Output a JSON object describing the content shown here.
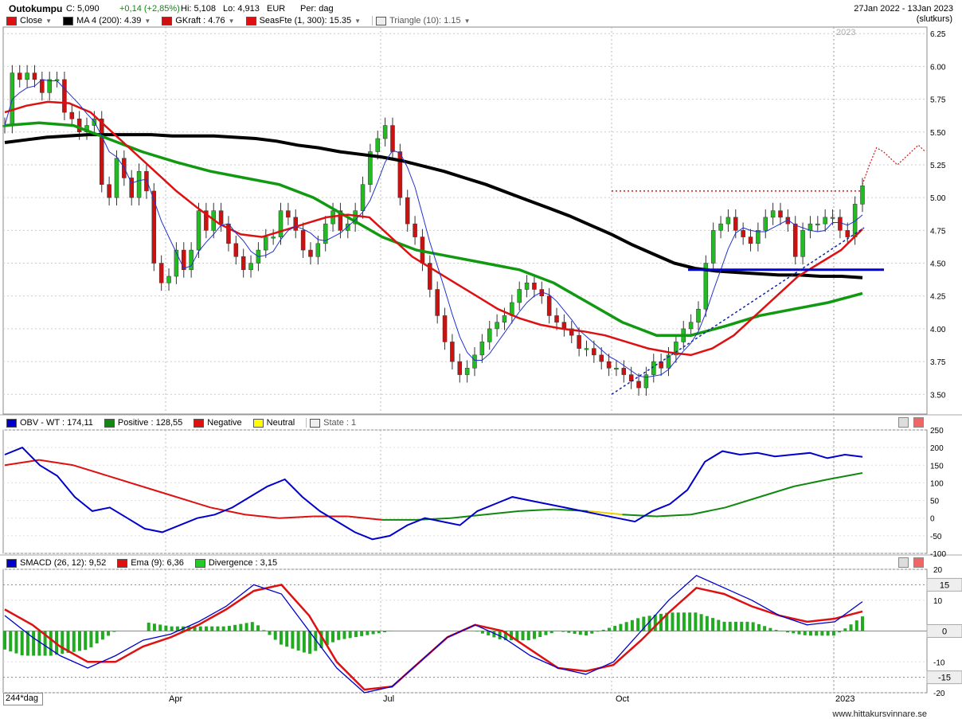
{
  "header": {
    "name": "Outokumpu",
    "close": "C: 5,090",
    "change": "+0,14 (+2,85%)",
    "hi": "Hi: 5,108",
    "lo": "Lo: 4,913",
    "currency": "EUR",
    "period": "Per: dag",
    "range": "27Jan 2022 - 13Jan 2023",
    "mode": "(slutkurs)",
    "year_marker": "2023"
  },
  "legend_price": [
    {
      "label": "Close",
      "color": "#e01010"
    },
    {
      "label": "MA 4 (200): 4.39",
      "color": "#000000"
    },
    {
      "label": "GKraft : 4.76",
      "color": "#d01010"
    },
    {
      "label": "SeasFte (1, 300): 15.35",
      "color": "#e01010"
    },
    {
      "label": "Triangle (10): 1.15",
      "color": "#e8e8e8"
    }
  ],
  "legend_obv": [
    {
      "label": "OBV - WT : 174,11",
      "color": "#0000cc"
    },
    {
      "label": "Positive : 128,55",
      "color": "#118811"
    },
    {
      "label": "Negative",
      "color": "#e01010"
    },
    {
      "label": "Neutral",
      "color": "#ffff00"
    },
    {
      "label": "State : 1",
      "color": "#e8e8e8"
    }
  ],
  "legend_macd": [
    {
      "label": "SMACD (26, 12): 9,52",
      "color": "#0000cc"
    },
    {
      "label": "Ema (9): 6,36",
      "color": "#e01010"
    },
    {
      "label": "Divergence : 3,15",
      "color": "#22cc22"
    }
  ],
  "footer": {
    "period_label": "244*dag",
    "months": [
      "Apr",
      "Jul",
      "Oct",
      "2023"
    ],
    "watermark": "www.hittakursvinnare.se"
  },
  "chart_data": [
    {
      "type": "line",
      "panel": "price",
      "ylim": [
        3.35,
        6.3
      ],
      "yticks": [
        "6.25",
        "6.00",
        "5.75",
        "5.50",
        "5.25",
        "5.00",
        "4.75",
        "4.50",
        "4.25",
        "4.00",
        "3.75",
        "3.50"
      ],
      "close": [
        5.55,
        5.95,
        5.9,
        5.95,
        5.9,
        5.8,
        5.9,
        5.9,
        5.65,
        5.6,
        5.5,
        5.55,
        5.6,
        5.1,
        5.0,
        5.3,
        5.15,
        5.0,
        5.2,
        5.05,
        4.5,
        4.35,
        4.4,
        4.6,
        4.45,
        4.6,
        4.9,
        4.75,
        4.9,
        4.8,
        4.65,
        4.55,
        4.45,
        4.5,
        4.6,
        4.7,
        4.7,
        4.9,
        4.85,
        4.75,
        4.6,
        4.55,
        4.65,
        4.8,
        4.9,
        4.75,
        4.8,
        4.9,
        5.1,
        5.35,
        5.45,
        5.55,
        5.35,
        5.0,
        4.8,
        4.7,
        4.5,
        4.3,
        4.1,
        3.9,
        3.75,
        3.65,
        3.7,
        3.8,
        3.9,
        4.0,
        4.05,
        4.1,
        4.2,
        4.3,
        4.35,
        4.3,
        4.25,
        4.1,
        4.05,
        4.0,
        3.95,
        3.85,
        3.85,
        3.8,
        3.75,
        3.7,
        3.7,
        3.65,
        3.6,
        3.55,
        3.65,
        3.75,
        3.7,
        3.8,
        3.9,
        4.0,
        4.05,
        4.15,
        4.5,
        4.75,
        4.8,
        4.85,
        4.75,
        4.7,
        4.65,
        4.75,
        4.85,
        4.9,
        4.85,
        4.8,
        4.55,
        4.75,
        4.8,
        4.8,
        4.85,
        4.85,
        4.75,
        4.7,
        4.95,
        5.09
      ],
      "ma200": [
        5.42,
        5.44,
        5.46,
        5.47,
        5.48,
        5.48,
        5.48,
        5.48,
        5.47,
        5.47,
        5.47,
        5.46,
        5.45,
        5.43,
        5.4,
        5.38,
        5.35,
        5.33,
        5.31,
        5.28,
        5.24,
        5.2,
        5.15,
        5.1,
        5.04,
        4.98,
        4.92,
        4.86,
        4.79,
        4.72,
        4.64,
        4.57,
        4.5,
        4.46,
        4.44,
        4.43,
        4.42,
        4.41,
        4.41,
        4.4,
        4.4,
        4.39
      ],
      "gkraft": [
        5.65,
        5.7,
        5.73,
        5.72,
        5.65,
        5.5,
        5.35,
        5.2,
        5.05,
        4.92,
        4.8,
        4.72,
        4.7,
        4.75,
        4.8,
        4.85,
        4.87,
        4.85,
        4.7,
        4.55,
        4.45,
        4.35,
        4.25,
        4.15,
        4.08,
        4.03,
        4.0,
        3.98,
        3.95,
        3.9,
        3.85,
        3.82,
        3.8,
        3.85,
        3.95,
        4.1,
        4.25,
        4.4,
        4.5,
        4.6,
        4.76
      ],
      "seasonal_forecast": [
        5.1,
        5.25,
        5.38,
        5.35,
        5.3,
        5.25,
        5.3,
        5.35,
        5.4,
        5.35
      ],
      "resistance": 5.05,
      "support": 4.45
    },
    {
      "type": "line",
      "panel": "OBV",
      "ylim": [
        -100,
        250
      ],
      "yticks": [
        "250",
        "200",
        "150",
        "100",
        "50",
        "0",
        "-50",
        "-100"
      ],
      "obv": [
        180,
        200,
        150,
        120,
        60,
        20,
        30,
        0,
        -30,
        -40,
        -20,
        0,
        10,
        30,
        60,
        90,
        110,
        60,
        20,
        -10,
        -40,
        -60,
        -50,
        -20,
        0,
        -10,
        -20,
        20,
        40,
        60,
        50,
        40,
        30,
        20,
        10,
        0,
        -10,
        20,
        40,
        80,
        160,
        190,
        180,
        185,
        175,
        180,
        185,
        170,
        180,
        174
      ],
      "signal": [
        150,
        165,
        150,
        120,
        90,
        60,
        30,
        10,
        0,
        5,
        5,
        -5,
        -5,
        0,
        10,
        20,
        25,
        20,
        10,
        5,
        10,
        30,
        60,
        90,
        110,
        128
      ]
    },
    {
      "type": "line",
      "panel": "MACD",
      "ylim": [
        -20,
        20
      ],
      "yticks": [
        "20",
        "15",
        "10",
        "0",
        "-10",
        "-15",
        "-20"
      ],
      "level_labels": [
        "15",
        "0",
        "-15"
      ],
      "smacd": [
        5,
        -2,
        -8,
        -12,
        -8,
        -3,
        -1,
        3,
        8,
        15,
        12,
        0,
        -12,
        -20,
        -18,
        -10,
        -2,
        2,
        -2,
        -8,
        -12,
        -14,
        -10,
        0,
        10,
        18,
        14,
        10,
        5,
        2,
        3,
        9.52
      ],
      "ema": [
        7,
        2,
        -5,
        -10,
        -10,
        -5,
        -2,
        2,
        7,
        13,
        15,
        5,
        -10,
        -19,
        -18,
        -10,
        -2,
        2,
        0,
        -6,
        -12,
        -13,
        -11,
        -3,
        6,
        14,
        12,
        8,
        5,
        3,
        4,
        6.36
      ],
      "divergence_last": 3.15
    }
  ]
}
